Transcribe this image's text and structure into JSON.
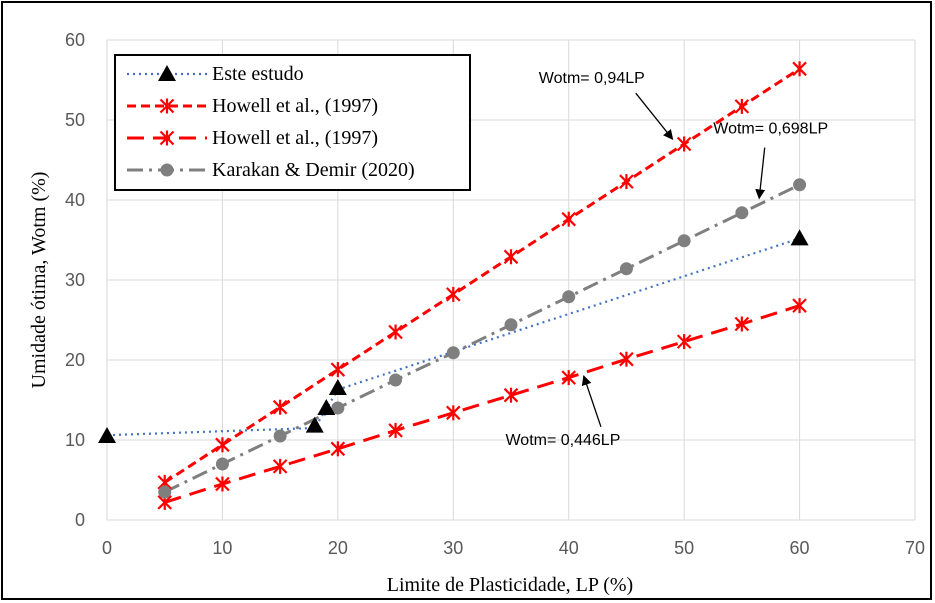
{
  "chart_data": {
    "type": "scatter",
    "xlabel": "Limite  de Plasticidade, LP (%)",
    "ylabel": "Umidade ótima, Wotm (%)",
    "xlim": [
      0,
      70
    ],
    "ylim": [
      0,
      60
    ],
    "xticks": [
      0,
      10,
      20,
      30,
      40,
      50,
      60,
      70
    ],
    "yticks": [
      0,
      10,
      20,
      30,
      40,
      50,
      60
    ],
    "grid": true,
    "legend_position": "top-left",
    "series": [
      {
        "name": "Este estudo",
        "color": "#4472C4",
        "marker": "triangle",
        "marker_color": "#000000",
        "line_style": "dotted",
        "points": [
          [
            0,
            10.5
          ],
          [
            18,
            11.8
          ],
          [
            19,
            14.0
          ],
          [
            20,
            16.5
          ],
          [
            60,
            35.2
          ]
        ],
        "trend_line": [
          [
            0,
            10.6
          ],
          [
            18,
            11.5
          ],
          [
            20,
            16.3
          ],
          [
            60,
            35.2
          ]
        ]
      },
      {
        "name": "Howell et al., (1997)",
        "color": "#FF0000",
        "marker": "asterisk",
        "line_style": "short-dash",
        "points": [
          [
            5,
            4.7
          ],
          [
            10,
            9.4
          ],
          [
            15,
            14.1
          ],
          [
            20,
            18.8
          ],
          [
            25,
            23.5
          ],
          [
            30,
            28.2
          ],
          [
            35,
            32.9
          ],
          [
            40,
            37.6
          ],
          [
            45,
            42.3
          ],
          [
            50,
            47.0
          ],
          [
            55,
            51.7
          ],
          [
            60,
            56.4
          ]
        ]
      },
      {
        "name": "Howell et al., (1997)",
        "color": "#FF0000",
        "marker": "asterisk",
        "line_style": "long-dash",
        "points": [
          [
            5,
            2.2
          ],
          [
            10,
            4.5
          ],
          [
            15,
            6.7
          ],
          [
            20,
            8.9
          ],
          [
            25,
            11.2
          ],
          [
            30,
            13.4
          ],
          [
            35,
            15.6
          ],
          [
            40,
            17.8
          ],
          [
            45,
            20.1
          ],
          [
            50,
            22.3
          ],
          [
            55,
            24.5
          ],
          [
            60,
            26.8
          ]
        ]
      },
      {
        "name": "Karakan & Demir (2020)",
        "color": "#7F7F7F",
        "marker": "circle",
        "line_style": "dash-dot",
        "points": [
          [
            5,
            3.5
          ],
          [
            10,
            7.0
          ],
          [
            15,
            10.5
          ],
          [
            20,
            14.0
          ],
          [
            25,
            17.5
          ],
          [
            30,
            20.9
          ],
          [
            35,
            24.4
          ],
          [
            40,
            27.9
          ],
          [
            45,
            31.4
          ],
          [
            50,
            34.9
          ],
          [
            55,
            38.4
          ],
          [
            60,
            41.9
          ]
        ]
      }
    ],
    "annotations": [
      {
        "text": "Wotm= 0,94LP",
        "anchor": [
          42,
          54.6
        ],
        "arrow_to": [
          49,
          47.6
        ]
      },
      {
        "text": "Wotm= 0,698LP",
        "anchor": [
          57.5,
          48.3
        ],
        "arrow_to": [
          56.5,
          40.2
        ]
      },
      {
        "text": "Wotm= 0,446LP",
        "anchor": [
          39.5,
          9.4
        ],
        "arrow_to": [
          41.3,
          18.0
        ]
      }
    ]
  }
}
